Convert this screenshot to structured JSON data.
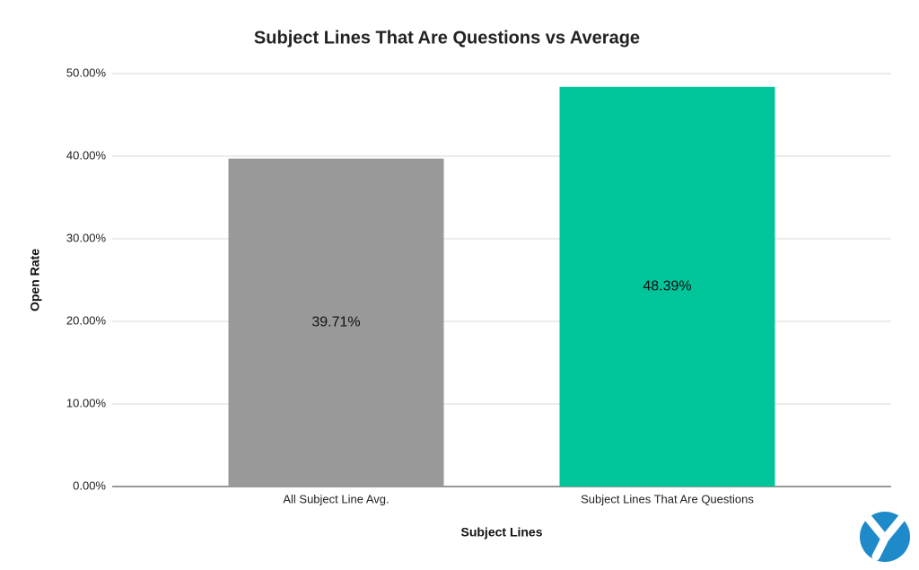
{
  "chart_data": {
    "type": "bar",
    "title": "Subject Lines That Are Questions vs Average",
    "x_label": "Subject Lines",
    "y_label": "Open Rate",
    "categories": [
      "All Subject Line Avg.",
      "Subject Lines That Are Questions"
    ],
    "values": [
      39.71,
      48.39
    ],
    "value_labels": [
      "39.71%",
      "48.39%"
    ],
    "colors": [
      "#999999",
      "#00c49a"
    ],
    "ylim": [
      0,
      50
    ],
    "yticks": [
      {
        "value": 0,
        "label": "0.00%"
      },
      {
        "value": 10,
        "label": "10.00%"
      },
      {
        "value": 20,
        "label": "20.00%"
      },
      {
        "value": 30,
        "label": "30.00%"
      },
      {
        "value": 40,
        "label": "40.00%"
      },
      {
        "value": 50,
        "label": "50.00%"
      }
    ],
    "grid": true
  }
}
